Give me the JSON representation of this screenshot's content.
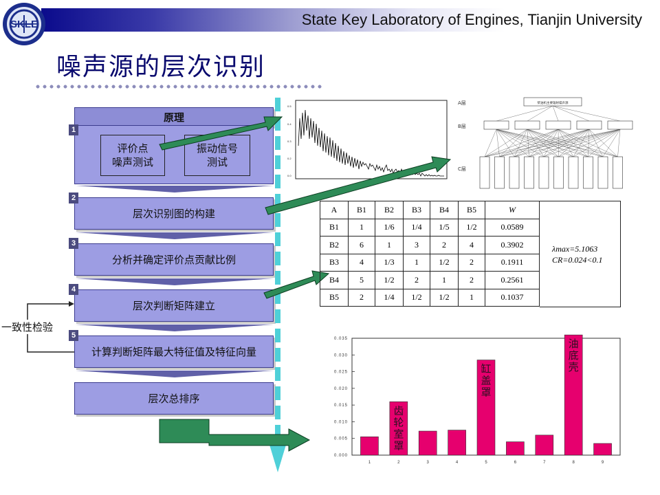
{
  "header": {
    "org": "State Key Laboratory of Engines, Tianjin   University",
    "logo_text": "SKLE"
  },
  "title": "噪声源的层次识别",
  "flow": {
    "principle_title": "原理",
    "inner_left": [
      "评价点",
      "噪声测试"
    ],
    "inner_right": [
      "振动信号",
      "测试"
    ],
    "steps": [
      {
        "num": "1",
        "label": ""
      },
      {
        "num": "2",
        "label": "层次识别图的构建"
      },
      {
        "num": "3",
        "label": "分析并确定评价点贡献比例"
      },
      {
        "num": "4",
        "label": "层次判断矩阵建立"
      },
      {
        "num": "5",
        "label": "计算判断矩阵最大特征值及特征向量"
      },
      {
        "num": "",
        "label": "层次总排序"
      }
    ],
    "consistency_label": "一致性检验"
  },
  "hierarchy": {
    "levels": [
      "A层",
      "B层",
      "C层"
    ],
    "top": "柴油机主要辐射噪声源",
    "b_count": 5,
    "c_count": 10
  },
  "matrix": {
    "headers": [
      "A",
      "B1",
      "B2",
      "B3",
      "B4",
      "B5",
      "W"
    ],
    "rows": [
      [
        "B1",
        "1",
        "1/6",
        "1/4",
        "1/5",
        "1/2",
        "0.0589"
      ],
      [
        "B2",
        "6",
        "1",
        "3",
        "2",
        "4",
        "0.3902"
      ],
      [
        "B3",
        "4",
        "1/3",
        "1",
        "1/2",
        "2",
        "0.1911"
      ],
      [
        "B4",
        "5",
        "1/2",
        "2",
        "1",
        "2",
        "0.2561"
      ],
      [
        "B5",
        "2",
        "1/4",
        "1/2",
        "1/2",
        "1",
        "0.1037"
      ]
    ],
    "lambda_text": "λmax=5.1063",
    "cr_text": "CR=0.024<0.1"
  },
  "chart_data": {
    "type": "bar",
    "categories": [
      "1",
      "2",
      "3",
      "4",
      "5",
      "6",
      "7",
      "8",
      "9"
    ],
    "values": [
      0.0055,
      0.016,
      0.0072,
      0.0075,
      0.0285,
      0.004,
      0.006,
      0.036,
      0.0035
    ],
    "ylim": [
      0,
      0.035
    ],
    "yticks": [
      "0.000",
      "0.005",
      "0.010",
      "0.015",
      "0.020",
      "0.025",
      "0.030",
      "0.035"
    ],
    "bar_labels": {
      "2": "齿轮室罩",
      "5": "缸盖罩",
      "8": "油底壳"
    },
    "color": "#e6006e"
  },
  "colors": {
    "box": "#9d9de3",
    "arrow": "#2e8b57",
    "cyan": "#4fd0d8",
    "title": "#0a0a6e"
  }
}
